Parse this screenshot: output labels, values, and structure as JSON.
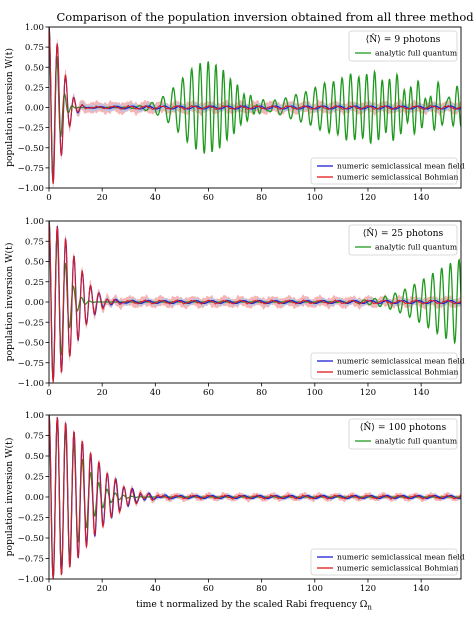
{
  "figure": {
    "title": "Comparison of the population inversion obtained from all three methods",
    "xlabel": "time t normalized by the scaled Rabi frequency Ω",
    "xlabel_sub": "n"
  },
  "colors": {
    "mean_field": "#1f1fd6",
    "bohmian": "#e01b1b",
    "quantum": "#1f9a1f",
    "mean_field_band": "#aac8ee",
    "bohmian_band": "#f4a8a8"
  },
  "chart_data": [
    {
      "type": "line",
      "title": "⟨N̂⟩ = 9 photons",
      "xlabel": "",
      "ylabel": "population inversion W(t)",
      "xlim": [
        0,
        155
      ],
      "ylim": [
        -1.0,
        1.0
      ],
      "xticks": [
        "0",
        "20",
        "40",
        "60",
        "80",
        "100",
        "120",
        "140"
      ],
      "yticks": [
        "1.00",
        "0.75",
        "0.50",
        "0.25",
        "0.00",
        "−0.25",
        "−0.50",
        "−0.75",
        "−1.00"
      ],
      "legend_top": "top-right",
      "legend_bottom": "bottom-right",
      "series": [
        {
          "name": "analytic full quantum",
          "model": "quantum",
          "nbar": 9,
          "revival_amp": 0.55,
          "revival_center": 122,
          "revival_width": 20
        },
        {
          "name": "numeric semiclassical mean field",
          "model": "mean_field",
          "nbar": 9,
          "decay_tau": 6.5,
          "band": 0.05
        },
        {
          "name": "numeric semiclassical Bohmian",
          "model": "bohmian",
          "nbar": 9,
          "decay_tau": 6.5,
          "band": 0.09
        }
      ]
    },
    {
      "type": "line",
      "title": "⟨N̂⟩ = 25 photons",
      "xlabel": "",
      "ylabel": "population inversion W(t)",
      "xlim": [
        0,
        155
      ],
      "ylim": [
        -1.0,
        1.0
      ],
      "xticks": [
        "0",
        "20",
        "40",
        "60",
        "80",
        "100",
        "120",
        "140"
      ],
      "yticks": [
        "1.00",
        "0.75",
        "0.50",
        "0.25",
        "0.00",
        "−0.25",
        "−0.50",
        "−0.75",
        "−1.00"
      ],
      "legend_top": "top-right",
      "legend_bottom": "bottom-right",
      "series": [
        {
          "name": "analytic full quantum",
          "model": "quantum",
          "nbar": 25,
          "revival_amp": 0.0,
          "revival_center": 0,
          "revival_width": 1
        },
        {
          "name": "numeric semiclassical mean field",
          "model": "mean_field",
          "nbar": 25,
          "decay_tau": 12.5,
          "band": 0.04
        },
        {
          "name": "numeric semiclassical Bohmian",
          "model": "bohmian",
          "nbar": 25,
          "decay_tau": 12.5,
          "band": 0.08
        }
      ]
    },
    {
      "type": "line",
      "title": "⟨N̂⟩ = 100 photons",
      "xlabel": "time t normalized by the scaled Rabi frequency Ω",
      "ylabel": "population inversion W(t)",
      "xlim": [
        0,
        155
      ],
      "ylim": [
        -1.0,
        1.0
      ],
      "xticks": [
        "0",
        "20",
        "40",
        "60",
        "80",
        "100",
        "120",
        "140"
      ],
      "yticks": [
        "1.00",
        "0.75",
        "0.50",
        "0.25",
        "0.00",
        "−0.25",
        "−0.50",
        "−0.75",
        "−1.00"
      ],
      "legend_top": "top-right",
      "legend_bottom": "bottom-right",
      "series": [
        {
          "name": "analytic full quantum",
          "model": "quantum",
          "nbar": 100,
          "revival_amp": 0.0,
          "revival_center": 0,
          "revival_width": 1
        },
        {
          "name": "numeric semiclassical mean field",
          "model": "mean_field",
          "nbar": 100,
          "decay_tau": 20.0,
          "band": 0.03
        },
        {
          "name": "numeric semiclassical Bohmian",
          "model": "bohmian",
          "nbar": 100,
          "decay_tau": 20.0,
          "band": 0.05
        }
      ]
    }
  ]
}
